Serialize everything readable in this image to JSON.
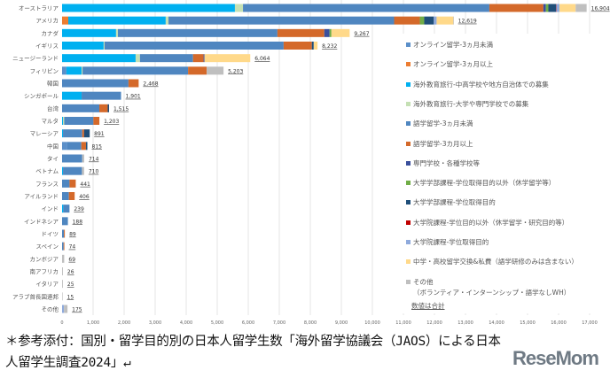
{
  "chart_data": {
    "type": "bar",
    "orientation": "horizontal",
    "stacked": true,
    "xlim": [
      0,
      17000
    ],
    "x_ticks": [
      "0",
      "1,000",
      "2,000",
      "3,000",
      "4,000",
      "5,000",
      "6,000",
      "7,000",
      "8,000",
      "9,000",
      "10,000",
      "11,000",
      "12,000",
      "13,000",
      "14,000",
      "15,000",
      "16,000",
      "17,000"
    ],
    "grid": true,
    "legend_position": "right",
    "legend_note": "数値は合計",
    "categories": [
      "オーストラリア",
      "アメリカ",
      "カナダ",
      "イギリス",
      "ニュージーランド",
      "フィリピン",
      "韓国",
      "シンガポール",
      "台湾",
      "マルタ",
      "マレーシア",
      "中国",
      "タイ",
      "ベトナム",
      "フランス",
      "アイルランド",
      "インド",
      "インドネシア",
      "ドイツ",
      "スペイン",
      "カンボジア",
      "南アフリカ",
      "イタリア",
      "アラブ首長国連邦",
      "その他"
    ],
    "totals": [
      "16,904",
      "12,619",
      "9,267",
      "8,232",
      "6,064",
      "5,203",
      "2,468",
      "1,901",
      "1,515",
      "1,203",
      "891",
      "815",
      "714",
      "710",
      "441",
      "406",
      "239",
      "188",
      "89",
      "74",
      "69",
      "26",
      "25",
      "15",
      "175"
    ],
    "series": [
      {
        "name": "オンライン留学-3ヵ月未満",
        "color": "#5b8fc9",
        "values": [
          0,
          0,
          0,
          0,
          0,
          140,
          0,
          0,
          0,
          0,
          0,
          170,
          0,
          0,
          0,
          0,
          0,
          0,
          0,
          0,
          0,
          0,
          0,
          0,
          0
        ]
      },
      {
        "name": "オンライン留学-3ヵ月以上",
        "color": "#ed7d31",
        "values": [
          0,
          200,
          0,
          0,
          0,
          0,
          0,
          0,
          0,
          0,
          0,
          0,
          0,
          0,
          0,
          0,
          0,
          0,
          0,
          0,
          0,
          0,
          0,
          0,
          0
        ]
      },
      {
        "name": "海外教育旅行-中高学校や地方自治体での募集",
        "color": "#00b0f0",
        "values": [
          5570,
          3140,
          1740,
          1340,
          2370,
          490,
          0,
          630,
          0,
          30,
          30,
          0,
          0,
          30,
          0,
          0,
          40,
          0,
          0,
          0,
          0,
          0,
          0,
          0,
          0
        ]
      },
      {
        "name": "海外教育旅行-大学や専門学校での募集",
        "color": "#c5e0b4",
        "values": [
          260,
          90,
          60,
          30,
          140,
          30,
          0,
          0,
          0,
          40,
          0,
          0,
          0,
          0,
          0,
          0,
          0,
          0,
          0,
          0,
          0,
          0,
          0,
          0,
          0
        ]
      },
      {
        "name": "語学留学-3ヵ月未満",
        "color": "#4f86c0",
        "values": [
          7940,
          7270,
          5140,
          5770,
          1710,
          3400,
          2140,
          1271,
          1200,
          940,
          620,
          450,
          650,
          610,
          240,
          220,
          199,
          188,
          60,
          50,
          0,
          0,
          0,
          0,
          0
        ]
      },
      {
        "name": "語学留学-3カ月以上",
        "color": "#d4692a",
        "values": [
          1740,
          830,
          1510,
          910,
          340,
          600,
          328,
          0,
          270,
          193,
          60,
          150,
          0,
          0,
          201,
          186,
          0,
          0,
          29,
          24,
          0,
          0,
          0,
          0,
          0
        ]
      },
      {
        "name": "専門学校・各種学校等",
        "color": "#3a4f9c",
        "values": [
          80,
          0,
          170,
          0,
          30,
          0,
          0,
          0,
          0,
          0,
          0,
          0,
          0,
          0,
          0,
          0,
          0,
          0,
          0,
          0,
          0,
          0,
          0,
          0,
          0
        ]
      },
      {
        "name": "大学学部課程-学位取得目的以外（休学留学等）",
        "color": "#70ad47",
        "values": [
          80,
          140,
          60,
          0,
          0,
          0,
          0,
          0,
          0,
          0,
          0,
          0,
          0,
          0,
          0,
          0,
          0,
          0,
          0,
          0,
          0,
          0,
          0,
          0,
          0
        ]
      },
      {
        "name": "大学学部課程-学位取得目的",
        "color": "#1f4e79",
        "values": [
          250,
          310,
          0,
          60,
          0,
          0,
          0,
          0,
          45,
          0,
          181,
          45,
          0,
          0,
          0,
          0,
          0,
          0,
          0,
          0,
          0,
          0,
          0,
          0,
          0
        ]
      },
      {
        "name": "大学院課程-学位目的以外（休学留学・研究目的等）",
        "color": "#c00000",
        "values": [
          10,
          0,
          0,
          0,
          0,
          0,
          0,
          0,
          0,
          0,
          0,
          0,
          0,
          0,
          0,
          0,
          0,
          0,
          0,
          0,
          0,
          0,
          0,
          0,
          0
        ]
      },
      {
        "name": "大学院課程-学位取得目的",
        "color": "#8faadc",
        "values": [
          100,
          90,
          0,
          0,
          0,
          0,
          0,
          0,
          0,
          0,
          0,
          0,
          0,
          0,
          0,
          0,
          0,
          0,
          0,
          0,
          0,
          0,
          0,
          0,
          60
        ]
      },
      {
        "name": "中学・高校留学交換&私費（語学研修のみは含まない）",
        "color": "#ffd98a",
        "values": [
          520,
          540,
          587,
          122,
          1474,
          0,
          0,
          0,
          0,
          0,
          0,
          0,
          0,
          0,
          0,
          0,
          0,
          0,
          0,
          0,
          0,
          0,
          0,
          0,
          0
        ]
      },
      {
        "name": "その他\n（ボランティア・インターンシップ・語学なしWH）",
        "color": "#bfbfbf",
        "values": [
          354,
          9,
          0,
          0,
          0,
          543,
          0,
          0,
          0,
          0,
          0,
          0,
          64,
          70,
          0,
          0,
          0,
          0,
          0,
          0,
          69,
          26,
          25,
          15,
          115
        ]
      }
    ]
  },
  "caption": "＊参考添付：国別・留学目的別の日本人留学生数「海外留学協議会（JAOS）による日本人留学生調査2024」↵",
  "logo": {
    "text": "ReseMom",
    "sub": "リセマム"
  }
}
